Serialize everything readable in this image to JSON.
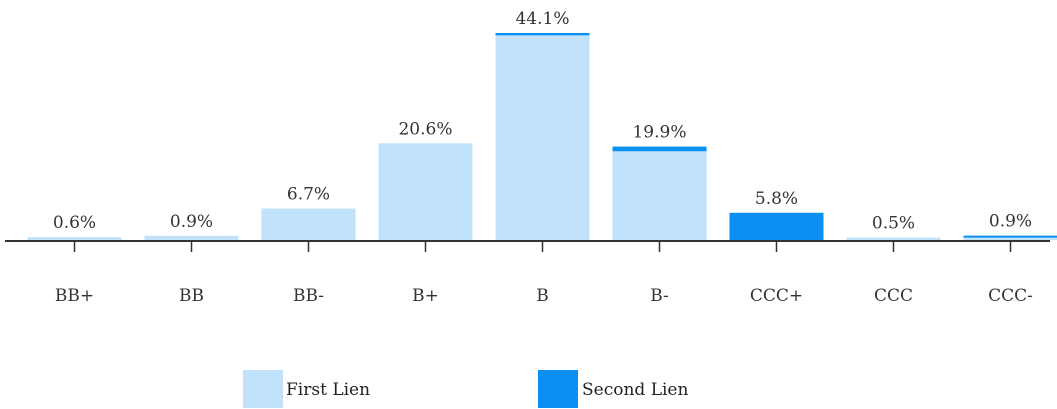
{
  "chart_data": {
    "type": "bar",
    "stacked": true,
    "categories": [
      "BB+",
      "BB",
      "BB-",
      "B+",
      "B",
      "B-",
      "CCC+",
      "CCC",
      "CCC-"
    ],
    "series": [
      {
        "name": "First Lien",
        "color": "#c0e2fb",
        "values": [
          0.6,
          0.9,
          6.7,
          20.6,
          43.6,
          18.9,
          0,
          0.5,
          0.5
        ]
      },
      {
        "name": "Second Lien",
        "color": "#0b8ff0",
        "values": [
          0,
          0,
          0,
          0,
          0.5,
          1.0,
          5.8,
          0,
          0.4
        ]
      }
    ],
    "total_labels": [
      "0.6%",
      "0.9%",
      "6.7%",
      "20.6%",
      "44.1%",
      "19.9%",
      "5.8%",
      "0.5%",
      "0.9%"
    ],
    "ylim": [
      0,
      44.1
    ],
    "grid": false,
    "legend_position": "bottom-center"
  }
}
